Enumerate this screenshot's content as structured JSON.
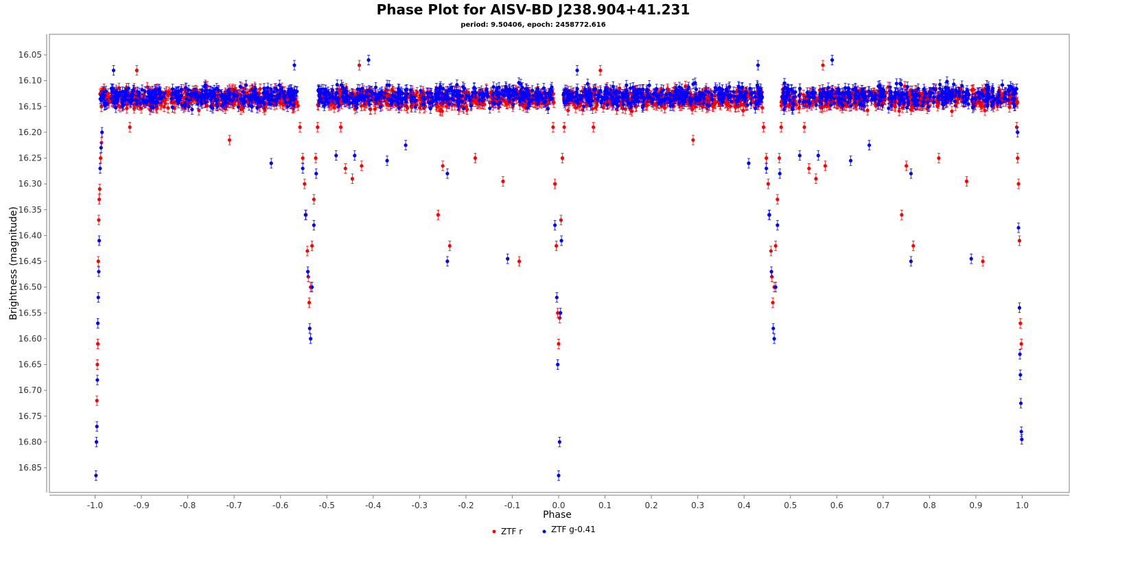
{
  "chart_data": {
    "type": "scatter",
    "title": "Phase Plot for AISV-BD J238.904+41.231",
    "subtitle": "period: 9.50406, epoch: 2458772.616",
    "xlabel": "Phase",
    "ylabel": "Brightness (magnitude)",
    "xlim": [
      -1.1,
      1.1
    ],
    "ylim": [
      16.02,
      16.89
    ],
    "y_inverted": true,
    "grid": false,
    "legend_position": "bottom",
    "x_ticks": [
      -1.0,
      -0.9,
      -0.8,
      -0.7,
      -0.6,
      -0.5,
      -0.4,
      -0.3,
      -0.2,
      -0.1,
      0.0,
      0.1,
      0.2,
      0.3,
      0.4,
      0.5,
      0.6,
      0.7,
      0.8,
      0.9,
      1.0
    ],
    "x_tick_labels": [
      "-1.0",
      "-0.9",
      "-0.8",
      "-0.7",
      "-0.6",
      "-0.5",
      "-0.4",
      "-0.3",
      "-0.2",
      "-0.1",
      "0.0",
      "0.1",
      "0.2",
      "0.3",
      "0.4",
      "0.5",
      "0.6",
      "0.7",
      "0.8",
      "0.9",
      "1.0"
    ],
    "y_ticks": [
      16.05,
      16.1,
      16.15,
      16.2,
      16.25,
      16.3,
      16.35,
      16.4,
      16.45,
      16.5,
      16.55,
      16.6,
      16.65,
      16.7,
      16.75,
      16.8,
      16.85
    ],
    "y_tick_labels": [
      "16.05",
      "16.10",
      "16.15",
      "16.20",
      "16.25",
      "16.30",
      "16.35",
      "16.40",
      "16.45",
      "16.50",
      "16.55",
      "16.60",
      "16.65",
      "16.70",
      "16.75",
      "16.80",
      "16.85"
    ],
    "series": [
      {
        "name": "ZTF r",
        "color": "#ff0000",
        "points": [
          [
            -0.996,
            16.72
          ],
          [
            -0.995,
            16.65
          ],
          [
            -0.994,
            16.61
          ],
          [
            -0.993,
            16.45
          ],
          [
            -0.992,
            16.37
          ],
          [
            -0.991,
            16.33
          ],
          [
            -0.99,
            16.31
          ],
          [
            -0.988,
            16.25
          ],
          [
            -0.986,
            16.22
          ],
          [
            -0.91,
            16.08
          ],
          [
            -0.925,
            16.19
          ],
          [
            -0.71,
            16.215
          ],
          [
            -0.558,
            16.19
          ],
          [
            -0.552,
            16.25
          ],
          [
            -0.548,
            16.3
          ],
          [
            -0.545,
            16.36
          ],
          [
            -0.542,
            16.43
          ],
          [
            -0.54,
            16.48
          ],
          [
            -0.538,
            16.53
          ],
          [
            -0.535,
            16.5
          ],
          [
            -0.532,
            16.42
          ],
          [
            -0.528,
            16.33
          ],
          [
            -0.524,
            16.25
          ],
          [
            -0.52,
            16.19
          ],
          [
            -0.47,
            16.19
          ],
          [
            -0.46,
            16.27
          ],
          [
            -0.445,
            16.29
          ],
          [
            -0.43,
            16.07
          ],
          [
            -0.425,
            16.265
          ],
          [
            -0.26,
            16.36
          ],
          [
            -0.25,
            16.265
          ],
          [
            -0.235,
            16.42
          ],
          [
            -0.18,
            16.25
          ],
          [
            -0.12,
            16.295
          ],
          [
            -0.085,
            16.45
          ],
          [
            -0.012,
            16.19
          ],
          [
            -0.008,
            16.3
          ],
          [
            -0.005,
            16.42
          ],
          [
            -0.002,
            16.55
          ],
          [
            0.0,
            16.61
          ],
          [
            0.002,
            16.56
          ],
          [
            0.005,
            16.37
          ],
          [
            0.008,
            16.25
          ],
          [
            0.012,
            16.19
          ],
          [
            0.09,
            16.08
          ],
          [
            0.075,
            16.19
          ],
          [
            0.29,
            16.215
          ],
          [
            0.442,
            16.19
          ],
          [
            0.448,
            16.25
          ],
          [
            0.452,
            16.3
          ],
          [
            0.455,
            16.36
          ],
          [
            0.458,
            16.43
          ],
          [
            0.46,
            16.48
          ],
          [
            0.462,
            16.53
          ],
          [
            0.465,
            16.5
          ],
          [
            0.468,
            16.42
          ],
          [
            0.472,
            16.33
          ],
          [
            0.476,
            16.25
          ],
          [
            0.48,
            16.19
          ],
          [
            0.53,
            16.19
          ],
          [
            0.54,
            16.27
          ],
          [
            0.555,
            16.29
          ],
          [
            0.57,
            16.07
          ],
          [
            0.575,
            16.265
          ],
          [
            0.74,
            16.36
          ],
          [
            0.75,
            16.265
          ],
          [
            0.765,
            16.42
          ],
          [
            0.82,
            16.25
          ],
          [
            0.88,
            16.295
          ],
          [
            0.915,
            16.45
          ],
          [
            0.988,
            16.19
          ],
          [
            0.99,
            16.25
          ],
          [
            0.992,
            16.3
          ],
          [
            0.994,
            16.41
          ],
          [
            0.996,
            16.57
          ],
          [
            0.998,
            16.61
          ]
        ]
      },
      {
        "name": "ZTF g-0.41",
        "color": "#0000ff",
        "points": [
          [
            -0.998,
            16.865
          ],
          [
            -0.997,
            16.8
          ],
          [
            -0.996,
            16.77
          ],
          [
            -0.995,
            16.68
          ],
          [
            -0.994,
            16.57
          ],
          [
            -0.993,
            16.52
          ],
          [
            -0.992,
            16.47
          ],
          [
            -0.991,
            16.41
          ],
          [
            -0.989,
            16.27
          ],
          [
            -0.987,
            16.23
          ],
          [
            -0.985,
            16.2
          ],
          [
            -0.96,
            16.08
          ],
          [
            -0.62,
            16.26
          ],
          [
            -0.57,
            16.07
          ],
          [
            -0.552,
            16.27
          ],
          [
            -0.546,
            16.36
          ],
          [
            -0.541,
            16.47
          ],
          [
            -0.537,
            16.58
          ],
          [
            -0.535,
            16.6
          ],
          [
            -0.532,
            16.5
          ],
          [
            -0.528,
            16.38
          ],
          [
            -0.523,
            16.28
          ],
          [
            -0.48,
            16.245
          ],
          [
            -0.44,
            16.245
          ],
          [
            -0.41,
            16.06
          ],
          [
            -0.37,
            16.255
          ],
          [
            -0.33,
            16.225
          ],
          [
            -0.24,
            16.45
          ],
          [
            -0.24,
            16.28
          ],
          [
            -0.11,
            16.445
          ],
          [
            -0.008,
            16.38
          ],
          [
            -0.004,
            16.52
          ],
          [
            -0.002,
            16.65
          ],
          [
            0.0,
            16.865
          ],
          [
            0.002,
            16.8
          ],
          [
            0.004,
            16.55
          ],
          [
            0.006,
            16.41
          ],
          [
            0.04,
            16.08
          ],
          [
            0.41,
            16.26
          ],
          [
            0.43,
            16.07
          ],
          [
            0.448,
            16.27
          ],
          [
            0.454,
            16.36
          ],
          [
            0.459,
            16.47
          ],
          [
            0.463,
            16.58
          ],
          [
            0.465,
            16.6
          ],
          [
            0.468,
            16.5
          ],
          [
            0.472,
            16.38
          ],
          [
            0.477,
            16.28
          ],
          [
            0.52,
            16.245
          ],
          [
            0.56,
            16.245
          ],
          [
            0.59,
            16.06
          ],
          [
            0.63,
            16.255
          ],
          [
            0.67,
            16.225
          ],
          [
            0.76,
            16.45
          ],
          [
            0.76,
            16.28
          ],
          [
            0.89,
            16.445
          ],
          [
            0.99,
            16.2
          ],
          [
            0.992,
            16.385
          ],
          [
            0.994,
            16.54
          ],
          [
            0.995,
            16.63
          ],
          [
            0.996,
            16.67
          ],
          [
            0.997,
            16.725
          ],
          [
            0.998,
            16.78
          ],
          [
            0.999,
            16.795
          ]
        ]
      }
    ],
    "dense_band": [
      {
        "series": 0,
        "x_min": -0.99,
        "x_max": -0.56,
        "y_center": 16.135,
        "y_spread": 0.028,
        "n": 420
      },
      {
        "series": 1,
        "x_min": -0.99,
        "x_max": -0.56,
        "y_center": 16.13,
        "y_spread": 0.03,
        "n": 320
      },
      {
        "series": 0,
        "x_min": -0.52,
        "x_max": -0.01,
        "y_center": 16.135,
        "y_spread": 0.028,
        "n": 480
      },
      {
        "series": 1,
        "x_min": -0.52,
        "x_max": -0.01,
        "y_center": 16.13,
        "y_spread": 0.03,
        "n": 360
      },
      {
        "series": 0,
        "x_min": 0.01,
        "x_max": 0.44,
        "y_center": 16.135,
        "y_spread": 0.028,
        "n": 420
      },
      {
        "series": 1,
        "x_min": 0.01,
        "x_max": 0.44,
        "y_center": 16.13,
        "y_spread": 0.03,
        "n": 320
      },
      {
        "series": 0,
        "x_min": 0.48,
        "x_max": 0.99,
        "y_center": 16.135,
        "y_spread": 0.028,
        "n": 480
      },
      {
        "series": 1,
        "x_min": 0.48,
        "x_max": 0.99,
        "y_center": 16.13,
        "y_spread": 0.03,
        "n": 360
      }
    ]
  }
}
